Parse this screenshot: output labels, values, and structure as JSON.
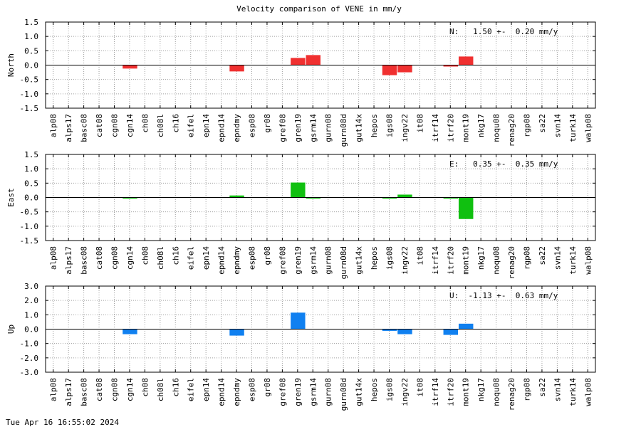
{
  "title": "Velocity comparison of VENE in mm/y",
  "footer": "Tue Apr 16 16:55:02 2024",
  "chart_data": [
    {
      "type": "bar",
      "ylabel": "North",
      "annotation": "N:   1.50 +-  0.20 mm/y",
      "color": "#f03030",
      "ylim": [
        -1.5,
        1.5
      ],
      "yticks": [
        "1.5",
        "1.0",
        "0.5",
        "0.0",
        "-0.5",
        "-1.0",
        "-1.5"
      ],
      "grid": true,
      "categories": [
        "alp08",
        "alps17",
        "basc08",
        "cat08",
        "cgn08",
        "cgn14",
        "ch08",
        "ch08l",
        "ch16",
        "eifel",
        "epn14",
        "epnd14",
        "epndmy",
        "esp08",
        "gr08",
        "gref08",
        "gren19",
        "gsrm14",
        "gurn08",
        "gurn08d",
        "gut14x",
        "hepos",
        "igs08",
        "ingv22",
        "it08",
        "itrf14",
        "itrf20",
        "mont19",
        "nkg17",
        "noqu08",
        "renag20",
        "rgp08",
        "sa22",
        "svn14",
        "turk14",
        "walp08"
      ],
      "values": [
        null,
        null,
        null,
        null,
        null,
        -0.12,
        null,
        null,
        null,
        null,
        null,
        null,
        -0.22,
        null,
        null,
        null,
        0.25,
        0.35,
        null,
        null,
        null,
        null,
        -0.35,
        -0.25,
        null,
        null,
        -0.05,
        0.3,
        null,
        null,
        null,
        null,
        null,
        null,
        null,
        null
      ]
    },
    {
      "type": "bar",
      "ylabel": "East",
      "annotation": "E:   0.35 +-  0.35 mm/y",
      "color": "#10c010",
      "ylim": [
        -1.5,
        1.5
      ],
      "yticks": [
        "1.5",
        "1.0",
        "0.5",
        "0.0",
        "-0.5",
        "-1.0",
        "-1.5"
      ],
      "grid": true,
      "categories": [
        "alp08",
        "alps17",
        "basc08",
        "cat08",
        "cgn08",
        "cgn14",
        "ch08",
        "ch08l",
        "ch16",
        "eifel",
        "epn14",
        "epnd14",
        "epndmy",
        "esp08",
        "gr08",
        "gref08",
        "gren19",
        "gsrm14",
        "gurn08",
        "gurn08d",
        "gut14x",
        "hepos",
        "igs08",
        "ingv22",
        "it08",
        "itrf14",
        "itrf20",
        "mont19",
        "nkg17",
        "noqu08",
        "renag20",
        "rgp08",
        "sa22",
        "svn14",
        "turk14",
        "walp08"
      ],
      "values": [
        null,
        null,
        null,
        null,
        null,
        -0.03,
        null,
        null,
        null,
        null,
        null,
        null,
        0.07,
        null,
        null,
        null,
        0.52,
        -0.02,
        null,
        null,
        null,
        null,
        -0.03,
        0.1,
        null,
        null,
        -0.02,
        -0.75,
        null,
        null,
        null,
        null,
        null,
        null,
        null,
        null
      ]
    },
    {
      "type": "bar",
      "ylabel": "Up",
      "annotation": "U:  -1.13 +-  0.63 mm/y",
      "color": "#1080f0",
      "ylim": [
        -3.0,
        3.0
      ],
      "yticks": [
        "3.0",
        "2.0",
        "1.0",
        "0.0",
        "-1.0",
        "-2.0",
        "-3.0"
      ],
      "grid": true,
      "categories": [
        "alp08",
        "alps17",
        "basc08",
        "cat08",
        "cgn08",
        "cgn14",
        "ch08",
        "ch08l",
        "ch16",
        "eifel",
        "epn14",
        "epnd14",
        "epndmy",
        "esp08",
        "gr08",
        "gref08",
        "gren19",
        "gsrm14",
        "gurn08",
        "gurn08d",
        "gut14x",
        "hepos",
        "igs08",
        "ingv22",
        "it08",
        "itrf14",
        "itrf20",
        "mont19",
        "nkg17",
        "noqu08",
        "renag20",
        "rgp08",
        "sa22",
        "svn14",
        "turk14",
        "walp08"
      ],
      "values": [
        null,
        null,
        null,
        null,
        null,
        -0.35,
        null,
        null,
        null,
        null,
        null,
        null,
        -0.45,
        null,
        null,
        null,
        1.15,
        null,
        null,
        null,
        null,
        null,
        -0.12,
        -0.35,
        null,
        null,
        -0.4,
        0.38,
        null,
        null,
        null,
        null,
        null,
        null,
        null,
        null
      ]
    }
  ]
}
